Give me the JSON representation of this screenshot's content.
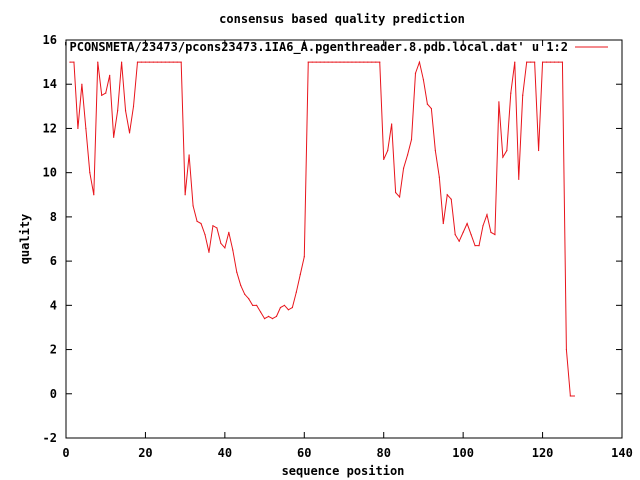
{
  "chart_data": {
    "type": "line",
    "title": "consensus based quality prediction",
    "xlabel": "sequence position",
    "ylabel": "quality",
    "xlim": [
      0,
      140
    ],
    "ylim": [
      -2,
      16
    ],
    "xticks": [
      0,
      20,
      40,
      60,
      80,
      100,
      120,
      140
    ],
    "yticks": [
      -2,
      0,
      2,
      4,
      6,
      8,
      10,
      12,
      14,
      16
    ],
    "grid": false,
    "legend_position": "top-right",
    "series": [
      {
        "name": "'PCONSMETA/23473/pcons23473.1IA6_A.pgenthreader.8.pdb.local.dat' u 1:2",
        "color": "#e8141b",
        "x": [
          1,
          2,
          3,
          4,
          5,
          6,
          7,
          8,
          9,
          10,
          11,
          12,
          13,
          14,
          15,
          16,
          17,
          18,
          19,
          20,
          21,
          22,
          23,
          24,
          25,
          26,
          27,
          28,
          29,
          30,
          31,
          32,
          33,
          34,
          35,
          36,
          37,
          38,
          39,
          40,
          41,
          42,
          43,
          44,
          45,
          46,
          47,
          48,
          49,
          50,
          51,
          52,
          53,
          54,
          55,
          56,
          57,
          58,
          59,
          60,
          61,
          62,
          63,
          64,
          65,
          66,
          67,
          68,
          69,
          70,
          71,
          72,
          73,
          74,
          75,
          76,
          77,
          78,
          79,
          80,
          81,
          82,
          83,
          84,
          85,
          86,
          87,
          88,
          89,
          90,
          91,
          92,
          93,
          94,
          95,
          96,
          97,
          98,
          99,
          100,
          101,
          102,
          103,
          104,
          105,
          106,
          107,
          108,
          109,
          110,
          111,
          112,
          113,
          114,
          115,
          116,
          117,
          118,
          119,
          120,
          121,
          122,
          123,
          124,
          125,
          126,
          127,
          128
        ],
        "y": [
          15,
          15,
          12,
          14,
          12,
          10,
          9,
          15,
          13.5,
          13.6,
          14.4,
          11.6,
          12.8,
          15,
          12.8,
          11.8,
          13,
          15,
          15,
          15,
          15,
          15,
          15,
          15,
          15,
          15,
          15,
          15,
          15,
          9,
          10.8,
          8.5,
          7.8,
          7.7,
          7.2,
          6.4,
          7.6,
          7.5,
          6.8,
          6.6,
          7.3,
          6.5,
          5.5,
          4.9,
          4.5,
          4.3,
          4,
          4,
          3.7,
          3.4,
          3.5,
          3.4,
          3.5,
          3.9,
          4,
          3.8,
          3.9,
          4.6,
          5.4,
          6.2,
          15,
          15,
          15,
          15,
          15,
          15,
          15,
          15,
          15,
          15,
          15,
          15,
          15,
          15,
          15,
          15,
          15,
          15,
          15,
          10.6,
          11,
          12.2,
          9.1,
          8.9,
          10.2,
          10.8,
          11.5,
          14.5,
          15,
          14.2,
          13.1,
          12.9,
          11,
          9.8,
          7.7,
          9,
          8.8,
          7.2,
          6.9,
          7.3,
          7.7,
          7.2,
          6.7,
          6.7,
          7.6,
          8.1,
          7.3,
          7.2,
          13.2,
          10.7,
          11,
          13.6,
          15,
          9.7,
          13.5,
          15,
          15,
          15,
          11,
          15,
          15,
          15,
          15,
          15,
          15,
          2,
          -0.1,
          -0.1
        ]
      }
    ]
  }
}
